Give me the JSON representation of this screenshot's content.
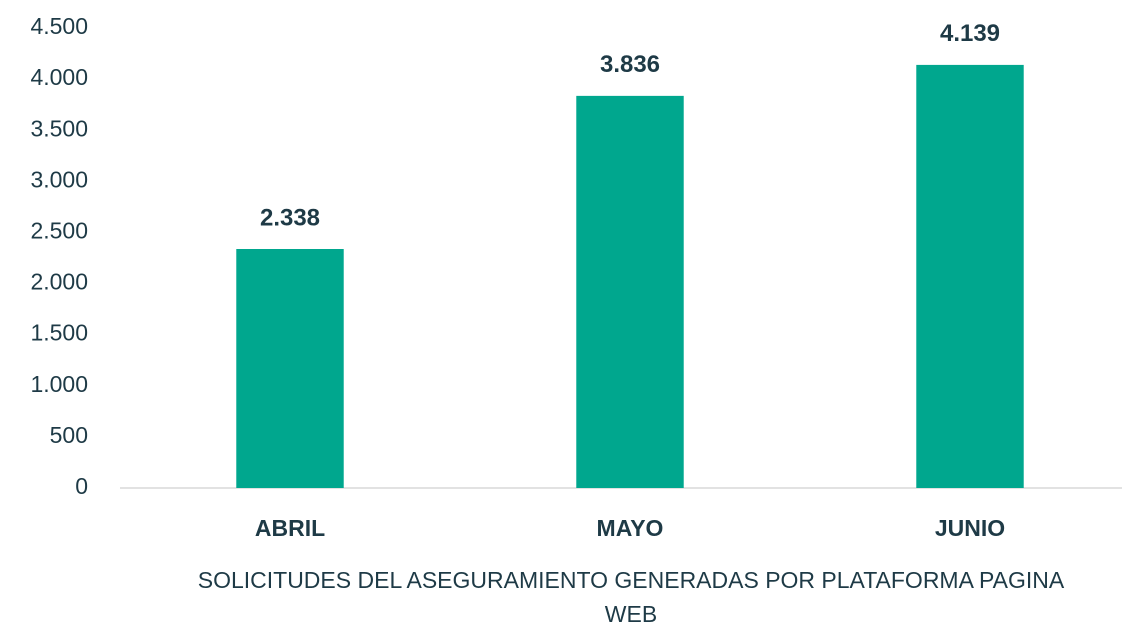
{
  "chart_data": {
    "type": "bar",
    "categories": [
      "ABRIL",
      "MAYO",
      "JUNIO"
    ],
    "values": [
      2338,
      3836,
      4139
    ],
    "value_labels": [
      "2.338",
      "3.836",
      "4.139"
    ],
    "color": "#00a78e",
    "x_label": "SOLICITUDES DEL ASEGURAMIENTO GENERADAS POR PLATAFORMA PAGINA WEB",
    "ylim": [
      0,
      4500
    ],
    "yticks": [
      0,
      500,
      {
        "value": 1000,
        "label": "1.000"
      },
      {
        "value": 1500,
        "label": "1.500"
      },
      {
        "value": 2000,
        "label": "2.000"
      },
      {
        "value": 2500,
        "label": "2.500"
      },
      {
        "value": 3000,
        "label": "3.000"
      },
      {
        "value": 3500,
        "label": "3.500"
      },
      {
        "value": 4000,
        "label": "4.000"
      },
      {
        "value": 4500,
        "label": "4.500"
      }
    ],
    "grid": false
  }
}
